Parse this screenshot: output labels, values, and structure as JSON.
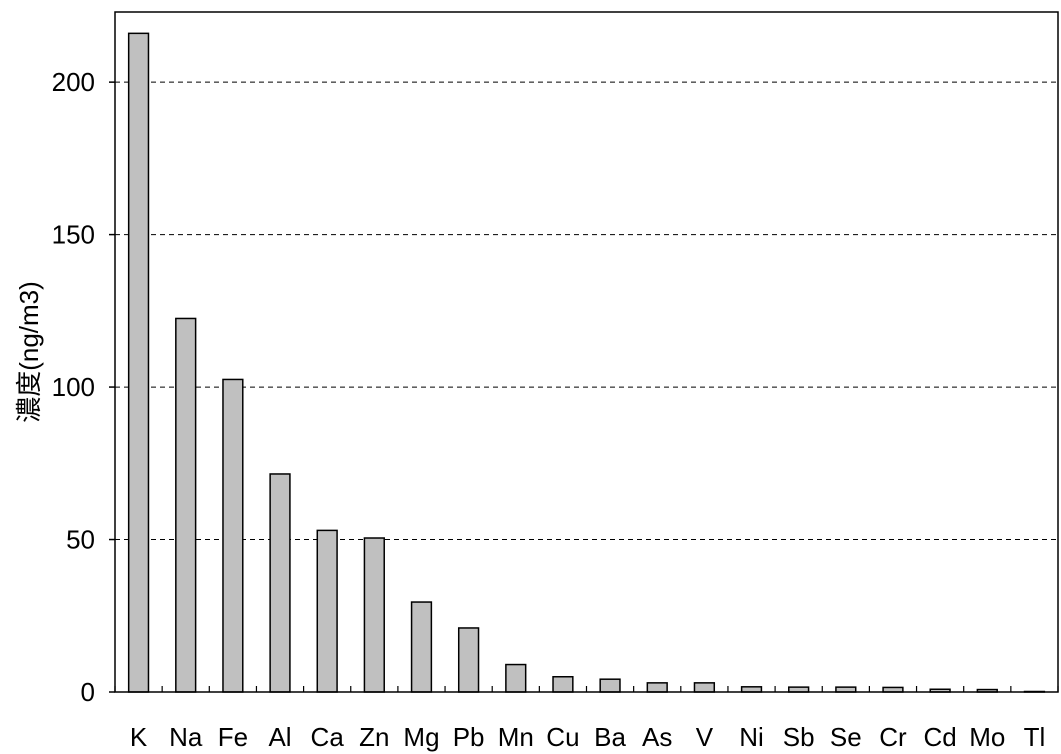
{
  "chart_data": {
    "type": "bar",
    "title": "",
    "xlabel": "",
    "ylabel": "濃度(ng/m3)",
    "categories": [
      "K",
      "Na",
      "Fe",
      "Al",
      "Ca",
      "Zn",
      "Mg",
      "Pb",
      "Mn",
      "Cu",
      "Ba",
      "As",
      "V",
      "Ni",
      "Sb",
      "Se",
      "Cr",
      "Cd",
      "Mo",
      "Tl"
    ],
    "values": [
      216,
      122.5,
      102.5,
      71.5,
      53,
      50.5,
      29.5,
      21,
      9,
      5,
      4.2,
      3,
      3,
      1.7,
      1.6,
      1.6,
      1.5,
      0.9,
      0.8,
      0.1
    ],
    "ylim": [
      0,
      223
    ],
    "yticks": [
      0,
      50,
      100,
      150,
      200
    ],
    "grid": true,
    "grid_style": "dashed",
    "bar_color": "#c0c0c0",
    "bar_edge_color": "#000000",
    "legend": "none"
  }
}
